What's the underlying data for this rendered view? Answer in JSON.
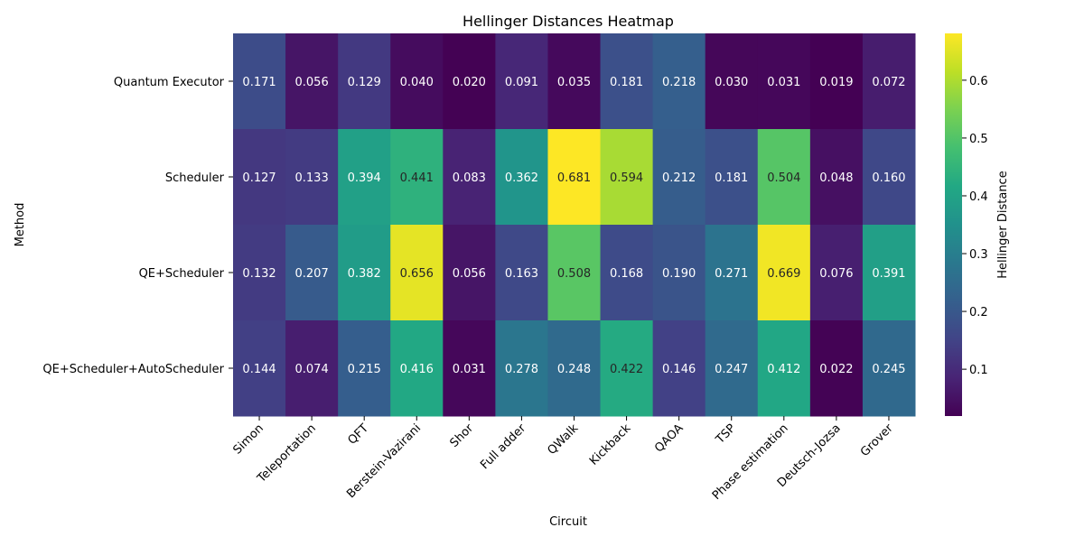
{
  "chart_data": {
    "type": "heatmap",
    "title": "Hellinger Distances Heatmap",
    "xlabel": "Circuit",
    "ylabel": "Method",
    "colorbar_label": "Hellinger Distance",
    "colormap": "viridis",
    "value_range": [
      0.019,
      0.681
    ],
    "colorbar_ticks": [
      "0.1",
      "0.2",
      "0.3",
      "0.4",
      "0.5",
      "0.6"
    ],
    "colorbar_tick_values": [
      0.1,
      0.2,
      0.3,
      0.4,
      0.5,
      0.6
    ],
    "annotation_color_dark": "#262626",
    "annotation_color_light": "#ffffff",
    "columns": [
      "Simon",
      "Teleportation",
      "QFT",
      "Berstein-Vazirani",
      "Shor",
      "Full adder",
      "QWalk",
      "Kickback",
      "QAOA",
      "TSP",
      "Phase estimation",
      "Deutsch-Jozsa",
      "Grover"
    ],
    "rows": [
      "Quantum Executor",
      "Scheduler",
      "QE+Scheduler",
      "QE+Scheduler+AutoScheduler"
    ],
    "values": [
      [
        0.171,
        0.056,
        0.129,
        0.04,
        0.02,
        0.091,
        0.035,
        0.181,
        0.218,
        0.03,
        0.031,
        0.019,
        0.072
      ],
      [
        0.127,
        0.133,
        0.394,
        0.441,
        0.083,
        0.362,
        0.681,
        0.594,
        0.212,
        0.181,
        0.504,
        0.048,
        0.16
      ],
      [
        0.132,
        0.207,
        0.382,
        0.656,
        0.056,
        0.163,
        0.508,
        0.168,
        0.19,
        0.271,
        0.669,
        0.076,
        0.391
      ],
      [
        0.144,
        0.074,
        0.215,
        0.416,
        0.031,
        0.278,
        0.248,
        0.422,
        0.146,
        0.247,
        0.412,
        0.022,
        0.245
      ]
    ],
    "value_labels": [
      [
        "0.171",
        "0.056",
        "0.129",
        "0.040",
        "0.020",
        "0.091",
        "0.035",
        "0.181",
        "0.218",
        "0.030",
        "0.031",
        "0.019",
        "0.072"
      ],
      [
        "0.127",
        "0.133",
        "0.394",
        "0.441",
        "0.083",
        "0.362",
        "0.681",
        "0.594",
        "0.212",
        "0.181",
        "0.504",
        "0.048",
        "0.160"
      ],
      [
        "0.132",
        "0.207",
        "0.382",
        "0.656",
        "0.056",
        "0.163",
        "0.508",
        "0.168",
        "0.190",
        "0.271",
        "0.669",
        "0.076",
        "0.391"
      ],
      [
        "0.144",
        "0.074",
        "0.215",
        "0.416",
        "0.031",
        "0.278",
        "0.248",
        "0.422",
        "0.146",
        "0.247",
        "0.412",
        "0.022",
        "0.245"
      ]
    ]
  }
}
